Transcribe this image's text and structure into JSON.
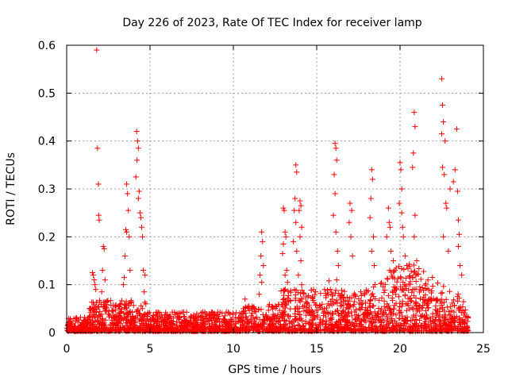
{
  "chart_data": {
    "type": "scatter",
    "title": "Day 226 of 2023, Rate Of TEC Index for receiver lamp",
    "xlabel": "GPS time / hours",
    "ylabel": "ROTI / TECUs",
    "xlim": [
      0,
      25
    ],
    "ylim": [
      0,
      0.6
    ],
    "xticks": [
      "0",
      "5",
      "10",
      "15",
      "20",
      "25"
    ],
    "yticks": [
      "0",
      "0.1",
      "0.2",
      "0.3",
      "0.4",
      "0.5",
      "0.6"
    ],
    "grid": true,
    "marker": "+",
    "color": "#ff0000",
    "series": [
      {
        "name": "ROTI",
        "points": [
          [
            1.8,
            0.59
          ],
          [
            1.85,
            0.385
          ],
          [
            1.9,
            0.31
          ],
          [
            1.92,
            0.245
          ],
          [
            1.95,
            0.235
          ],
          [
            1.55,
            0.125
          ],
          [
            1.6,
            0.12
          ],
          [
            1.65,
            0.11
          ],
          [
            1.7,
            0.1
          ],
          [
            1.75,
            0.09
          ],
          [
            2.2,
            0.18
          ],
          [
            2.25,
            0.175
          ],
          [
            2.15,
            0.13
          ],
          [
            2.3,
            0.11
          ],
          [
            2.1,
            0.085
          ],
          [
            3.6,
            0.31
          ],
          [
            3.65,
            0.29
          ],
          [
            3.7,
            0.255
          ],
          [
            3.55,
            0.215
          ],
          [
            3.6,
            0.21
          ],
          [
            3.75,
            0.2
          ],
          [
            3.5,
            0.16
          ],
          [
            3.45,
            0.115
          ],
          [
            3.4,
            0.1
          ],
          [
            3.8,
            0.13
          ],
          [
            4.2,
            0.42
          ],
          [
            4.25,
            0.4
          ],
          [
            4.3,
            0.385
          ],
          [
            4.22,
            0.36
          ],
          [
            4.15,
            0.325
          ],
          [
            4.35,
            0.295
          ],
          [
            4.3,
            0.28
          ],
          [
            4.4,
            0.25
          ],
          [
            4.45,
            0.24
          ],
          [
            4.5,
            0.22
          ],
          [
            4.55,
            0.2
          ],
          [
            4.6,
            0.13
          ],
          [
            4.7,
            0.12
          ],
          [
            4.65,
            0.085
          ],
          [
            4.75,
            0.06
          ],
          [
            10.7,
            0.07
          ],
          [
            11.7,
            0.21
          ],
          [
            11.75,
            0.19
          ],
          [
            11.65,
            0.16
          ],
          [
            11.8,
            0.14
          ],
          [
            11.6,
            0.12
          ],
          [
            11.7,
            0.105
          ],
          [
            11.55,
            0.08
          ],
          [
            13.0,
            0.26
          ],
          [
            13.05,
            0.255
          ],
          [
            13.1,
            0.21
          ],
          [
            13.15,
            0.2
          ],
          [
            13.0,
            0.185
          ],
          [
            12.95,
            0.165
          ],
          [
            13.2,
            0.13
          ],
          [
            13.1,
            0.12
          ],
          [
            13.25,
            0.105
          ],
          [
            13.75,
            0.35
          ],
          [
            13.8,
            0.335
          ],
          [
            13.7,
            0.28
          ],
          [
            13.65,
            0.255
          ],
          [
            13.75,
            0.23
          ],
          [
            14.0,
            0.275
          ],
          [
            14.05,
            0.265
          ],
          [
            13.95,
            0.255
          ],
          [
            14.1,
            0.22
          ],
          [
            14.0,
            0.2
          ],
          [
            13.6,
            0.19
          ],
          [
            13.8,
            0.17
          ],
          [
            14.05,
            0.15
          ],
          [
            13.9,
            0.12
          ],
          [
            14.1,
            0.1
          ],
          [
            16.1,
            0.395
          ],
          [
            16.15,
            0.385
          ],
          [
            16.2,
            0.36
          ],
          [
            16.05,
            0.33
          ],
          [
            16.1,
            0.29
          ],
          [
            16.0,
            0.245
          ],
          [
            16.15,
            0.21
          ],
          [
            16.25,
            0.17
          ],
          [
            16.3,
            0.14
          ],
          [
            16.2,
            0.11
          ],
          [
            17.0,
            0.27
          ],
          [
            17.1,
            0.255
          ],
          [
            16.95,
            0.23
          ],
          [
            17.05,
            0.2
          ],
          [
            17.15,
            0.16
          ],
          [
            18.3,
            0.34
          ],
          [
            18.35,
            0.32
          ],
          [
            18.25,
            0.28
          ],
          [
            18.2,
            0.24
          ],
          [
            18.4,
            0.2
          ],
          [
            18.3,
            0.17
          ],
          [
            18.45,
            0.14
          ],
          [
            19.3,
            0.26
          ],
          [
            19.35,
            0.23
          ],
          [
            19.4,
            0.22
          ],
          [
            19.2,
            0.2
          ],
          [
            19.45,
            0.17
          ],
          [
            19.6,
            0.15
          ],
          [
            19.7,
            0.13
          ],
          [
            20.0,
            0.355
          ],
          [
            20.05,
            0.34
          ],
          [
            20.1,
            0.3
          ],
          [
            19.95,
            0.27
          ],
          [
            20.1,
            0.25
          ],
          [
            20.15,
            0.22
          ],
          [
            20.2,
            0.2
          ],
          [
            20.3,
            0.16
          ],
          [
            20.4,
            0.14
          ],
          [
            20.85,
            0.46
          ],
          [
            20.9,
            0.43
          ],
          [
            20.8,
            0.375
          ],
          [
            20.75,
            0.345
          ],
          [
            20.9,
            0.245
          ],
          [
            20.85,
            0.2
          ],
          [
            21.0,
            0.15
          ],
          [
            20.95,
            0.12
          ],
          [
            22.5,
            0.53
          ],
          [
            22.55,
            0.475
          ],
          [
            22.6,
            0.44
          ],
          [
            22.5,
            0.415
          ],
          [
            22.7,
            0.4
          ],
          [
            22.55,
            0.345
          ],
          [
            22.65,
            0.33
          ],
          [
            22.75,
            0.27
          ],
          [
            22.8,
            0.26
          ],
          [
            22.6,
            0.2
          ],
          [
            22.9,
            0.17
          ],
          [
            23.0,
            0.3
          ],
          [
            23.2,
            0.315
          ],
          [
            23.3,
            0.34
          ],
          [
            23.4,
            0.425
          ],
          [
            23.45,
            0.295
          ],
          [
            23.5,
            0.235
          ],
          [
            23.55,
            0.205
          ],
          [
            23.5,
            0.18
          ],
          [
            23.6,
            0.14
          ],
          [
            23.7,
            0.12
          ]
        ]
      }
    ]
  }
}
